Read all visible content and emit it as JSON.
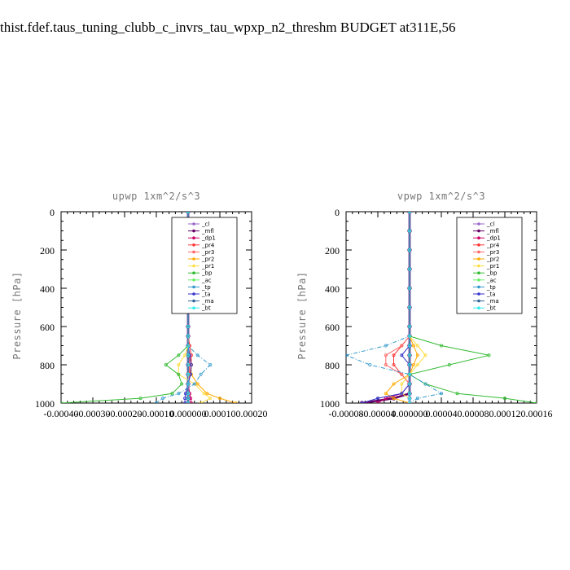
{
  "figure": {
    "title": "thist.fdef.taus_tuning_clubb_c_invrs_tau_wpxp_n2_threshm  BUDGET at311E,56"
  },
  "legend_entries": [
    {
      "name": "_cl",
      "color": "#9966cc"
    },
    {
      "name": "_mfl",
      "color": "#660066"
    },
    {
      "name": "_dp1",
      "color": "#cc0066"
    },
    {
      "name": "_pr4",
      "color": "#ff3333"
    },
    {
      "name": "_pr3",
      "color": "#ff6666"
    },
    {
      "name": "_pr2",
      "color": "#ffaa00"
    },
    {
      "name": "_pr1",
      "color": "#ffdd44"
    },
    {
      "name": "_bp",
      "color": "#33bb33"
    },
    {
      "name": "_ac",
      "color": "#66ee66"
    },
    {
      "name": "_tp",
      "color": "#3399cc"
    },
    {
      "name": "_ta",
      "color": "#3333cc"
    },
    {
      "name": "_ma",
      "color": "#336699"
    },
    {
      "name": "_bt",
      "color": "#33eeee"
    }
  ],
  "chart_data": [
    {
      "type": "line",
      "title": "upwp   1xm^2/s^3",
      "ylabel": "Pressure [hPa]",
      "xlabel": "",
      "ylim": [
        1000,
        0
      ],
      "xlim": [
        -0.0004,
        0.0002
      ],
      "yticks": [
        "0",
        "200",
        "400",
        "600",
        "800",
        "1000"
      ],
      "xticks": [
        "-0.00040",
        "-0.00030",
        "-0.00020",
        "-0.00010",
        "0.000000",
        "0.00010",
        "0.00020"
      ],
      "y": [
        0,
        100,
        200,
        300,
        400,
        500,
        600,
        650,
        700,
        750,
        800,
        850,
        900,
        950,
        975,
        1000
      ],
      "series": [
        {
          "name": "_cl",
          "color": "#9966cc",
          "values": [
            0,
            0,
            0,
            0,
            0,
            0,
            0,
            0,
            0,
            0,
            0,
            0,
            0,
            0,
            0,
            0
          ]
        },
        {
          "name": "_mfl",
          "color": "#660066",
          "values": [
            0,
            0,
            0,
            0,
            0,
            0,
            0,
            0,
            0,
            0,
            0,
            0,
            0,
            0,
            0,
            0
          ]
        },
        {
          "name": "_dp1",
          "color": "#cc0066",
          "values": [
            0,
            0,
            0,
            0,
            0,
            0,
            0,
            0,
            0,
            0,
            0,
            0,
            0,
            5e-06,
            8e-06,
            1e-05
          ]
        },
        {
          "name": "_pr4",
          "color": "#ff3333",
          "values": [
            0,
            0,
            0,
            0,
            0,
            0,
            0,
            0,
            5e-06,
            1e-05,
            1e-05,
            5e-06,
            0,
            0,
            0,
            0
          ]
        },
        {
          "name": "_pr3",
          "color": "#ff6666",
          "values": [
            0,
            0,
            0,
            0,
            0,
            0,
            0,
            0,
            0,
            5e-06,
            5e-06,
            3e-06,
            0,
            0,
            0,
            0
          ]
        },
        {
          "name": "_pr2",
          "color": "#ffaa00",
          "values": [
            0,
            0,
            0,
            0,
            0,
            0,
            0,
            0,
            0,
            5e-06,
            1e-05,
            1e-05,
            3e-05,
            6e-05,
            0.0001,
            0.00015
          ]
        },
        {
          "name": "_pr1",
          "color": "#ffdd44",
          "values": [
            0,
            0,
            0,
            0,
            0,
            0,
            0,
            0,
            0,
            -1e-05,
            -3e-05,
            -3e-05,
            2e-05,
            5e-05,
            7e-05,
            4e-05
          ]
        },
        {
          "name": "_bp",
          "color": "#33bb33",
          "values": [
            0,
            0,
            0,
            0,
            0,
            0,
            0,
            0,
            0,
            -3e-05,
            -7e-05,
            -3e-05,
            -2e-05,
            -5e-05,
            -0.00015,
            -0.0004
          ]
        },
        {
          "name": "_ac",
          "color": "#66ee66",
          "values": [
            0,
            0,
            0,
            0,
            0,
            0,
            0,
            0,
            0,
            0,
            0,
            0,
            0,
            0,
            0,
            0
          ]
        },
        {
          "name": "_tp",
          "color": "#3399cc",
          "values": [
            0,
            0,
            0,
            0,
            0,
            0,
            0,
            0,
            0,
            3e-05,
            7e-05,
            4e-05,
            2e-05,
            -3e-05,
            -8e-05,
            -0.0001
          ]
        },
        {
          "name": "_ta",
          "color": "#3333cc",
          "values": [
            0,
            0,
            0,
            0,
            0,
            0,
            0,
            0,
            0,
            5e-06,
            1e-05,
            8e-06,
            0,
            -8e-06,
            -1e-05,
            -1e-05
          ]
        },
        {
          "name": "_ma",
          "color": "#336699",
          "values": [
            0,
            0,
            0,
            0,
            0,
            0,
            0,
            0,
            0,
            0,
            0,
            0,
            0,
            0,
            0,
            0
          ]
        },
        {
          "name": "_bt",
          "color": "#33eeee",
          "values": [
            0,
            0,
            0,
            0,
            0,
            0,
            0,
            0,
            0,
            0,
            0,
            0,
            0,
            0,
            0,
            0
          ]
        }
      ]
    },
    {
      "type": "line",
      "title": "vpwp   1xm^2/s^3",
      "ylabel": "Pressure [hPa]",
      "xlabel": "",
      "ylim": [
        1000,
        0
      ],
      "xlim": [
        -8e-05,
        0.00016
      ],
      "yticks": [
        "0",
        "200",
        "400",
        "600",
        "800",
        "1000"
      ],
      "xticks": [
        "-0.00008",
        "-0.00004",
        "0.000000",
        "0.00004",
        "0.00008",
        "0.00012",
        "0.00016"
      ],
      "y": [
        0,
        100,
        200,
        300,
        400,
        500,
        600,
        650,
        700,
        750,
        800,
        850,
        900,
        950,
        975,
        1000
      ],
      "series": [
        {
          "name": "_cl",
          "color": "#9966cc",
          "values": [
            0,
            0,
            0,
            0,
            0,
            0,
            0,
            0,
            0,
            0,
            0,
            0,
            0,
            0,
            0,
            0
          ]
        },
        {
          "name": "_mfl",
          "color": "#660066",
          "values": [
            0,
            0,
            0,
            0,
            0,
            0,
            0,
            0,
            0,
            0,
            0,
            0,
            0,
            0,
            -2e-05,
            -6e-05
          ]
        },
        {
          "name": "_dp1",
          "color": "#cc0066",
          "values": [
            0,
            0,
            0,
            0,
            0,
            0,
            0,
            0,
            0,
            0,
            0,
            0,
            0,
            -1e-05,
            -3e-05,
            -4e-05
          ]
        },
        {
          "name": "_pr4",
          "color": "#ff3333",
          "values": [
            0,
            0,
            0,
            0,
            0,
            0,
            0,
            0,
            -1e-05,
            -2e-05,
            -2e-05,
            -1e-05,
            0,
            0,
            0,
            0
          ]
        },
        {
          "name": "_pr3",
          "color": "#ff6666",
          "values": [
            0,
            0,
            0,
            0,
            0,
            0,
            0,
            0,
            -1e-05,
            -3e-05,
            -3e-05,
            -1e-05,
            0,
            0,
            0,
            0
          ]
        },
        {
          "name": "_pr2",
          "color": "#ffaa00",
          "values": [
            0,
            0,
            0,
            0,
            0,
            0,
            0,
            0,
            5e-06,
            1e-05,
            5e-06,
            0,
            -2e-05,
            -3e-05,
            -2e-05,
            0
          ]
        },
        {
          "name": "_pr1",
          "color": "#ffdd44",
          "values": [
            0,
            0,
            0,
            0,
            0,
            0,
            0,
            0,
            1e-05,
            2e-05,
            1e-05,
            0,
            -1e-05,
            -1e-05,
            0,
            0
          ]
        },
        {
          "name": "_bp",
          "color": "#33bb33",
          "values": [
            0,
            0,
            0,
            0,
            0,
            0,
            0,
            0,
            4e-05,
            0.0001,
            5e-05,
            0,
            2e-05,
            6e-05,
            0.00012,
            0.00016
          ]
        },
        {
          "name": "_ac",
          "color": "#66ee66",
          "values": [
            0,
            0,
            0,
            0,
            0,
            0,
            0,
            0,
            0,
            0,
            0,
            0,
            0,
            0,
            0,
            0
          ]
        },
        {
          "name": "_tp",
          "color": "#3399cc",
          "values": [
            0,
            0,
            0,
            0,
            0,
            0,
            0,
            0,
            -3e-05,
            -8e-05,
            -5e-05,
            0,
            2e-05,
            4e-05,
            1e-05,
            0
          ]
        },
        {
          "name": "_ta",
          "color": "#3333cc",
          "values": [
            0,
            0,
            0,
            0,
            0,
            0,
            0,
            0,
            0,
            -1e-05,
            0,
            0,
            0,
            -1e-05,
            -4e-05,
            -6e-05
          ]
        },
        {
          "name": "_ma",
          "color": "#336699",
          "values": [
            0,
            0,
            0,
            0,
            0,
            0,
            0,
            0,
            0,
            0,
            0,
            0,
            0,
            0,
            0,
            0
          ]
        },
        {
          "name": "_bt",
          "color": "#33eeee",
          "values": [
            0,
            0,
            0,
            0,
            0,
            0,
            0,
            0,
            0,
            0,
            0,
            0,
            0,
            0,
            0,
            0
          ]
        }
      ]
    }
  ]
}
